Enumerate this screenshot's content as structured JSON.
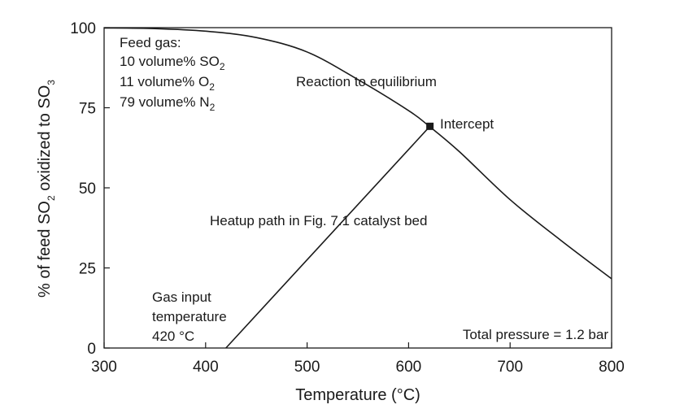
{
  "chart_data": {
    "type": "line",
    "xlabel": "Temperature (°C)",
    "ylabel_parts": [
      "% of feed SO",
      "2",
      " oxidized to SO",
      "3"
    ],
    "xlim": [
      300,
      800
    ],
    "ylim": [
      0,
      100
    ],
    "x_ticks": [
      300,
      400,
      500,
      600,
      700,
      800
    ],
    "y_ticks": [
      0,
      25,
      50,
      75,
      100
    ],
    "grid": false,
    "series": [
      {
        "name": "Reaction to equilibrium",
        "color": "#1a1a1a",
        "points": [
          [
            300,
            99.9
          ],
          [
            350,
            99.7
          ],
          [
            400,
            98.9
          ],
          [
            450,
            96.9
          ],
          [
            500,
            92.4
          ],
          [
            550,
            83.8
          ],
          [
            600,
            74.1
          ],
          [
            620,
            69.3
          ],
          [
            650,
            61.3
          ],
          [
            700,
            46.3
          ],
          [
            750,
            33.6
          ],
          [
            800,
            21.6
          ]
        ]
      },
      {
        "name": "Heatup path in Fig. 7.1 catalyst bed",
        "color": "#1a1a1a",
        "points": [
          [
            420,
            0
          ],
          [
            621,
            69.2
          ]
        ]
      }
    ],
    "marker": {
      "label": "Intercept",
      "x": 621,
      "y": 69.2
    },
    "annotations": {
      "feed_title": "Feed gas:",
      "feed_lines": [
        [
          "10 volume% SO",
          "2"
        ],
        [
          "11 volume% O",
          "2"
        ],
        [
          "79 volume% N",
          "2"
        ]
      ],
      "equilibrium_label": "Reaction to equilibrium",
      "intercept_label": "Intercept",
      "heatup_label": "Heatup path in Fig. 7.1 catalyst bed",
      "gas_input_lines": [
        "Gas input",
        "temperature",
        "420 °C"
      ],
      "pressure_label": "Total pressure = 1.2 bar"
    }
  }
}
